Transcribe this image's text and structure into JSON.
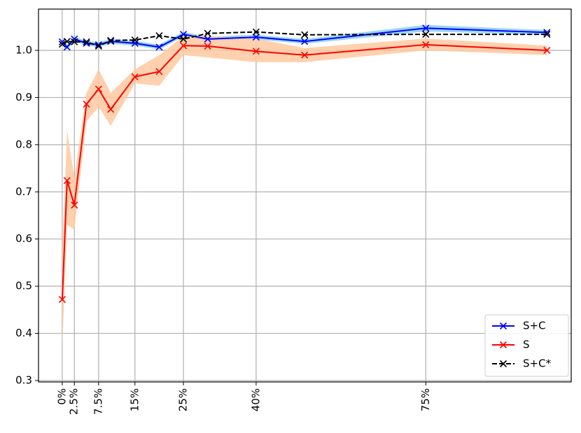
{
  "chart_data": {
    "type": "line",
    "x": [
      0,
      1,
      2.5,
      5,
      7.5,
      10,
      15,
      20,
      25,
      30,
      40,
      50,
      75,
      100
    ],
    "xlim": [
      -4.9,
      105
    ],
    "xticks": [
      {
        "value": 0,
        "label": "0%"
      },
      {
        "value": 2.5,
        "label": "2.5%"
      },
      {
        "value": 7.5,
        "label": "7.5%"
      },
      {
        "value": 15,
        "label": "15%"
      },
      {
        "value": 25,
        "label": "25%"
      },
      {
        "value": 40,
        "label": "40%"
      },
      {
        "value": 75,
        "label": "75%"
      }
    ],
    "ylim": [
      0.297,
      1.0875
    ],
    "yticks": [
      0.3,
      0.4,
      0.5,
      0.6,
      0.7,
      0.8,
      0.9,
      {
        "value": 1,
        "label": "1.0"
      }
    ],
    "grid": true,
    "legend": "lower right",
    "series": [
      {
        "name": "S+C",
        "color": "#0000ff",
        "linestyle": "solid",
        "band_color": "#87cefa",
        "values": [
          1.018,
          1.007,
          1.024,
          1.015,
          1.012,
          1.019,
          1.015,
          1.007,
          1.034,
          1.024,
          1.028,
          1.019,
          1.047,
          1.038
        ],
        "band_lower": [
          1.012,
          1.002,
          1.019,
          1.01,
          1.007,
          1.014,
          1.01,
          1.002,
          1.029,
          1.019,
          1.023,
          1.014,
          1.04,
          1.033
        ],
        "band_upper": [
          1.024,
          1.012,
          1.029,
          1.02,
          1.017,
          1.024,
          1.02,
          1.012,
          1.039,
          1.029,
          1.033,
          1.024,
          1.054,
          1.043
        ]
      },
      {
        "name": "S",
        "color": "#ff0000",
        "linestyle": "solid",
        "band_color": "#ffc9a0",
        "values": [
          0.472,
          0.724,
          0.672,
          0.886,
          0.918,
          0.875,
          0.944,
          0.955,
          1.01,
          1.009,
          0.998,
          0.99,
          1.012,
          1.0
        ],
        "band_lower": [
          0.37,
          0.63,
          0.62,
          0.85,
          0.88,
          0.84,
          0.93,
          0.925,
          0.99,
          0.985,
          0.975,
          0.975,
          1.0,
          0.99
        ],
        "band_upper": [
          0.57,
          0.83,
          0.73,
          0.91,
          0.96,
          0.91,
          0.96,
          0.99,
          1.03,
          1.03,
          1.025,
          1.005,
          1.025,
          1.01
        ]
      },
      {
        "name": "S+C*",
        "color": "#000000",
        "linestyle": "dashed",
        "values": [
          1.013,
          1.019,
          1.018,
          1.018,
          1.009,
          1.021,
          1.022,
          1.031,
          1.024,
          1.036,
          1.039,
          1.033,
          1.034,
          1.034
        ]
      }
    ]
  }
}
